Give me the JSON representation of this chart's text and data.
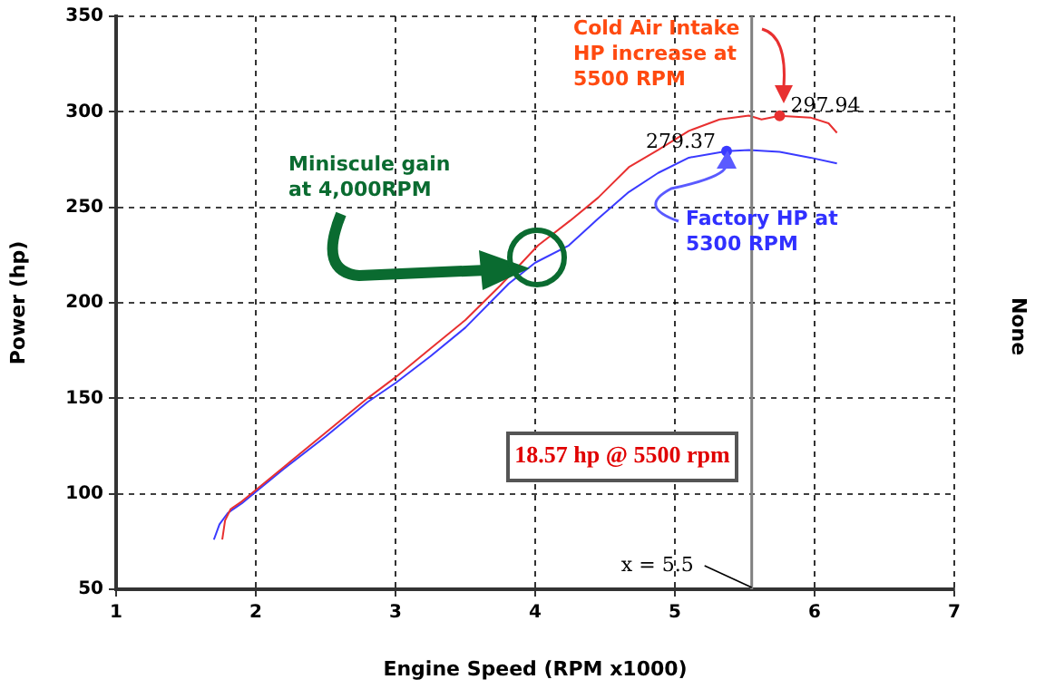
{
  "chart_data": {
    "type": "line",
    "xlabel": "Engine Speed (RPM x1000)",
    "ylabel": "Power (hp)",
    "y2label": "None",
    "xlim": [
      1,
      7
    ],
    "xticks": [
      1,
      2,
      3,
      4,
      5,
      6,
      7
    ],
    "ylim": [
      50,
      350
    ],
    "yticks": [
      50,
      100,
      150,
      200,
      250,
      300,
      350
    ],
    "grid": true,
    "legend": false,
    "marker": "none",
    "line_style": "solid",
    "series": [
      {
        "color": "#e83030",
        "x": [
          1.76,
          1.78,
          1.82,
          1.9,
          2,
          2.2,
          2.5,
          2.8,
          3,
          3.25,
          3.5,
          3.75,
          4.02,
          4.25,
          4.45,
          4.67,
          4.88,
          5.1,
          5.32,
          5.53,
          5.62,
          5.75,
          5.97,
          6.1,
          6.16
        ],
        "values": [
          76,
          86,
          92,
          96,
          102,
          114,
          132,
          150,
          161,
          176,
          191,
          209,
          230,
          243,
          255,
          271,
          280,
          290,
          296,
          298,
          296,
          297.94,
          297,
          294,
          289
        ]
      },
      {
        "color": "#3a3aff",
        "x": [
          1.7,
          1.74,
          1.8,
          1.9,
          2,
          2.2,
          2.5,
          2.8,
          3,
          3.25,
          3.5,
          3.81,
          4,
          4.24,
          4.45,
          4.67,
          4.88,
          5.1,
          5.37,
          5.53,
          5.75,
          5.97,
          6.16
        ],
        "values": [
          76,
          84,
          90,
          95,
          101,
          113,
          130,
          148,
          158,
          172,
          187,
          210,
          221,
          230,
          244,
          258,
          268,
          276,
          279.37,
          280,
          279,
          276,
          273
        ]
      }
    ],
    "ref_lines": [
      {
        "axis": "x",
        "value": 5.55,
        "label": "x = 5.5",
        "color": "#808080"
      }
    ],
    "annotations": [
      "Cold Air Intake HP increase at 5500 RPM",
      "Factory HP at 5300 RPM",
      "Miniscule gain at 4,000RPM",
      "18.57 hp @ 5500 rpm",
      {
        "text": "297.94",
        "x": 5.75,
        "y": 297.94
      },
      {
        "text": "279.37",
        "x": 5.37,
        "y": 279.37
      }
    ]
  }
}
